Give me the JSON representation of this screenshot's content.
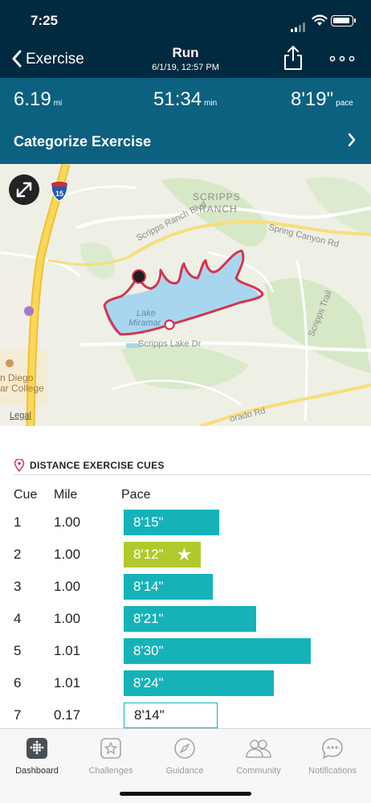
{
  "status_bar": {
    "time": "7:25"
  },
  "nav": {
    "back_label": "Exercise",
    "title": "Run",
    "subtitle": "6/1/19, 12:57 PM",
    "share_icon": "share-icon",
    "more_icon": "more-icon"
  },
  "summary": {
    "distance": {
      "value": "6.19",
      "unit": "mi"
    },
    "duration": {
      "value": "51:34",
      "unit": "min"
    },
    "pace": {
      "value": "8'19\"",
      "unit": "pace"
    },
    "categorize_label": "Categorize Exercise"
  },
  "map": {
    "labels": {
      "scripps_ranch_1": "SCRIPPS",
      "scripps_ranch_2": "RANCH",
      "scripps_ranch_blvd": "Scripps Ranch Blvd",
      "spring_canyon_rd": "Spring Canyon Rd",
      "lake_1": "Lake",
      "lake_2": "Miramar",
      "scripps_lake_dr": "Scripps Lake Dr",
      "scripps_trail": "Scripps Trail",
      "college_1": "n Diego",
      "college_2": "ar College",
      "dorado_rd": "orado Rd",
      "interstate": "15"
    },
    "legal": "Legal",
    "route_color": "#d7334f",
    "water_color": "#a9d6ef"
  },
  "cues": {
    "heading": "DISTANCE EXERCISE CUES",
    "columns": {
      "cue": "Cue",
      "mile": "Mile",
      "pace": "Pace"
    },
    "rows": [
      {
        "cue": "1",
        "mile": "1.00",
        "pace": "8'15\"",
        "pace_seconds": 495,
        "best": false,
        "partial": false
      },
      {
        "cue": "2",
        "mile": "1.00",
        "pace": "8'12\"",
        "pace_seconds": 492,
        "best": true,
        "partial": false
      },
      {
        "cue": "3",
        "mile": "1.00",
        "pace": "8'14\"",
        "pace_seconds": 494,
        "best": false,
        "partial": false
      },
      {
        "cue": "4",
        "mile": "1.00",
        "pace": "8'21\"",
        "pace_seconds": 501,
        "best": false,
        "partial": false
      },
      {
        "cue": "5",
        "mile": "1.01",
        "pace": "8'30\"",
        "pace_seconds": 510,
        "best": false,
        "partial": false
      },
      {
        "cue": "6",
        "mile": "1.01",
        "pace": "8'24\"",
        "pace_seconds": 504,
        "best": false,
        "partial": false
      },
      {
        "cue": "7",
        "mile": "0.17",
        "pace": "8'14\"",
        "pace_seconds": 494,
        "best": false,
        "partial": true
      }
    ],
    "bar_color": "#15b3b8",
    "best_color": "#b1c92c"
  },
  "tabs": [
    {
      "label": "Dashboard",
      "icon": "dashboard-icon",
      "active": true
    },
    {
      "label": "Challenges",
      "icon": "challenges-icon",
      "active": false
    },
    {
      "label": "Guidance",
      "icon": "guidance-icon",
      "active": false
    },
    {
      "label": "Community",
      "icon": "community-icon",
      "active": false
    },
    {
      "label": "Notifications",
      "icon": "notifications-icon",
      "active": false
    }
  ]
}
